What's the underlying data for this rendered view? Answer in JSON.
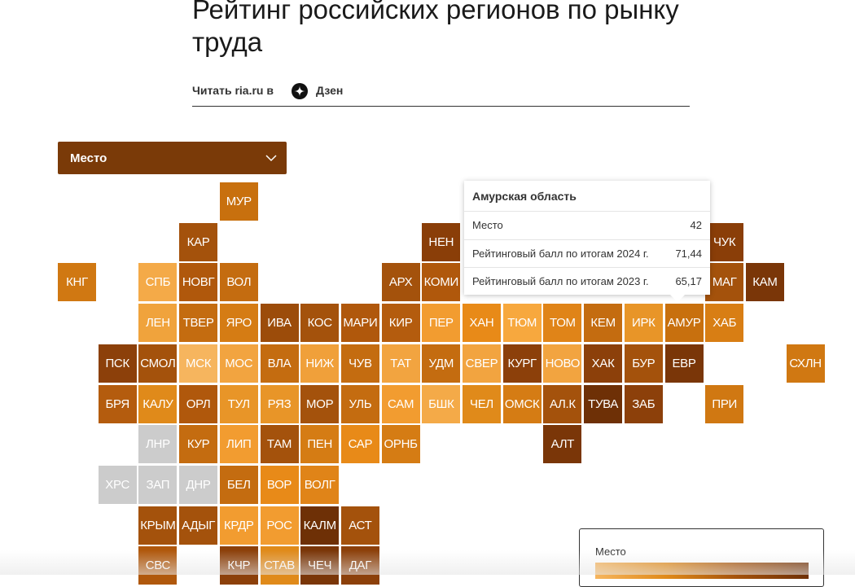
{
  "header": {
    "title": "Рейтинг российских регионов по рынку труда",
    "read_prefix": "Читать ria.ru в",
    "read_link": "Дзен"
  },
  "select": {
    "label": "Место"
  },
  "tiles": [
    {
      "label": "МУР",
      "color": "#c8700e"
    },
    {
      "label": "КАР",
      "color": "#a4520c"
    },
    {
      "label": "НЕН",
      "color": "#8a3e08"
    },
    {
      "label": "ЧУК",
      "color": "#8a3e08"
    },
    {
      "label": "КНГ",
      "color": "#d07812"
    },
    {
      "label": "СПБ",
      "color": "#f4aa48"
    },
    {
      "label": "НОВГ",
      "color": "#b0580c"
    },
    {
      "label": "ВОЛ",
      "color": "#c46c10"
    },
    {
      "label": "АРХ",
      "color": "#a4520c"
    },
    {
      "label": "КОМИ",
      "color": "#b0580c"
    },
    {
      "label": "МАГ",
      "color": "#a4520c"
    },
    {
      "label": "КАМ",
      "color": "#7a3608"
    },
    {
      "label": "ЛЕН",
      "color": "#f0a33c"
    },
    {
      "label": "ТВЕР",
      "color": "#c46c10"
    },
    {
      "label": "ЯРО",
      "color": "#d57c14"
    },
    {
      "label": "ИВА",
      "color": "#9c4c0a"
    },
    {
      "label": "КОС",
      "color": "#a4520c"
    },
    {
      "label": "МАРИ",
      "color": "#b0580c"
    },
    {
      "label": "КИР",
      "color": "#b45c0e"
    },
    {
      "label": "ПЕР",
      "color": "#f29c30"
    },
    {
      "label": "ХАН",
      "color": "#e88a18"
    },
    {
      "label": "ТЮМ",
      "color": "#f7a83e"
    },
    {
      "label": "ТОМ",
      "color": "#e08418"
    },
    {
      "label": "КЕМ",
      "color": "#c46c10"
    },
    {
      "label": "ИРК",
      "color": "#e89528"
    },
    {
      "label": "АМУР",
      "color": "#c8700e"
    },
    {
      "label": "ХАБ",
      "color": "#d87e14"
    },
    {
      "label": "ПСК",
      "color": "#8c400a"
    },
    {
      "label": "СМОЛ",
      "color": "#a4520c"
    },
    {
      "label": "МСК",
      "color": "#f6b55e"
    },
    {
      "label": "МОС",
      "color": "#f2a440"
    },
    {
      "label": "ВЛА",
      "color": "#c46c10"
    },
    {
      "label": "НИЖ",
      "color": "#f0a03a"
    },
    {
      "label": "ЧУВ",
      "color": "#c46c10"
    },
    {
      "label": "ТАТ",
      "color": "#f2a440"
    },
    {
      "label": "УДМ",
      "color": "#c46c10"
    },
    {
      "label": "СВЕР",
      "color": "#f2a440"
    },
    {
      "label": "КУРГ",
      "color": "#8c400a"
    },
    {
      "label": "НОВО",
      "color": "#f2a440"
    },
    {
      "label": "ХАК",
      "color": "#8c400a"
    },
    {
      "label": "БУР",
      "color": "#a4520c"
    },
    {
      "label": "ЕВР",
      "color": "#7a3608"
    },
    {
      "label": "СХЛН",
      "color": "#d07812"
    },
    {
      "label": "БРЯ",
      "color": "#b45c0e"
    },
    {
      "label": "КАЛУ",
      "color": "#e08a1a"
    },
    {
      "label": "ОРЛ",
      "color": "#b0580c"
    },
    {
      "label": "ТУЛ",
      "color": "#e89528"
    },
    {
      "label": "РЯЗ",
      "color": "#e89528"
    },
    {
      "label": "МОР",
      "color": "#a4520c"
    },
    {
      "label": "УЛЬ",
      "color": "#c46c10"
    },
    {
      "label": "САМ",
      "color": "#f29c30"
    },
    {
      "label": "БШК",
      "color": "#f4aa48"
    },
    {
      "label": "ЧЕЛ",
      "color": "#e08a1a"
    },
    {
      "label": "ОМСК",
      "color": "#d57c14"
    },
    {
      "label": "АЛ.К",
      "color": "#a4520c"
    },
    {
      "label": "ТУВА",
      "color": "#6e3006"
    },
    {
      "label": "ЗАБ",
      "color": "#8c400a"
    },
    {
      "label": "ПРИ",
      "color": "#d07812"
    },
    {
      "label": "ЛНР",
      "color": "#cccccc"
    },
    {
      "label": "КУР",
      "color": "#c46c10"
    },
    {
      "label": "ЛИП",
      "color": "#f29c30"
    },
    {
      "label": "ТАМ",
      "color": "#a4520c"
    },
    {
      "label": "ПЕН",
      "color": "#d57c14"
    },
    {
      "label": "САР",
      "color": "#e88a18"
    },
    {
      "label": "ОРНБ",
      "color": "#d57c14"
    },
    {
      "label": "АЛТ",
      "color": "#7a3608"
    },
    {
      "label": "ХРС",
      "color": "#cccccc"
    },
    {
      "label": "ЗАП",
      "color": "#cccccc"
    },
    {
      "label": "ДНР",
      "color": "#cccccc"
    },
    {
      "label": "БЕЛ",
      "color": "#c46c10"
    },
    {
      "label": "ВОР",
      "color": "#e88a18"
    },
    {
      "label": "ВОЛГ",
      "color": "#e08418"
    },
    {
      "label": "КРЫМ",
      "color": "#a4520c"
    },
    {
      "label": "АДЫГ",
      "color": "#a4520c"
    },
    {
      "label": "КРДР",
      "color": "#f29c30"
    },
    {
      "label": "РОС",
      "color": "#f29c30"
    },
    {
      "label": "КАЛМ",
      "color": "#6e3006"
    },
    {
      "label": "АСТ",
      "color": "#a4520c"
    },
    {
      "label": "СВС",
      "color": "#b0580c"
    },
    {
      "label": "КЧР",
      "color": "#8c400a"
    },
    {
      "label": "СТАВ",
      "color": "#e08a1a"
    },
    {
      "label": "ЧЕЧ",
      "color": "#7a3608"
    },
    {
      "label": "ДАГ",
      "color": "#8c400a"
    }
  ],
  "tooltip": {
    "title": "Амурская область",
    "rows": [
      {
        "key": "Место",
        "value": 42
      },
      {
        "key": "Рейтинговый балл по итогам 2024 г.",
        "value": {
          "value": 71.44,
          "label": "71,44"
        }
      },
      {
        "key": "Рейтинговый балл по итогам 2023 г.",
        "value": {
          "value": 65.17,
          "label": "65,17"
        }
      }
    ]
  },
  "legend": {
    "title": "Место"
  }
}
